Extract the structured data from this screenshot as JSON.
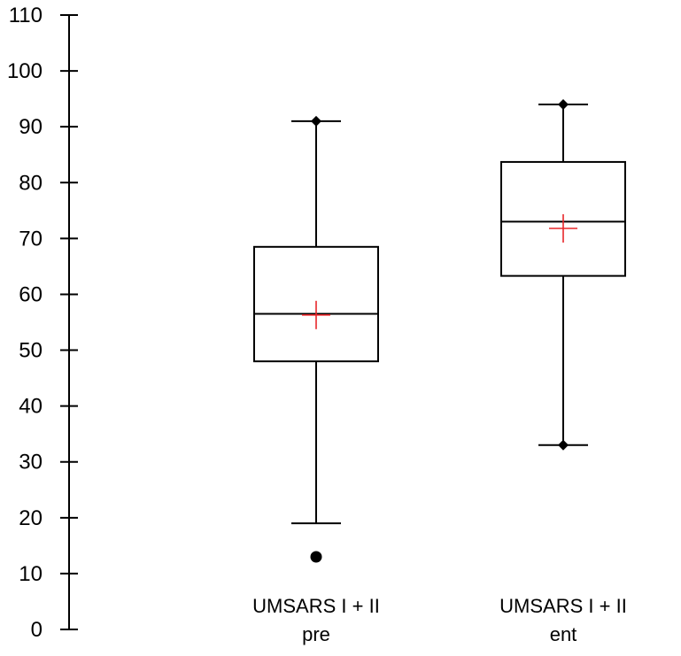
{
  "chart_data": {
    "type": "box",
    "title": "",
    "xlabel": "",
    "ylabel": "",
    "ylim": [
      0,
      110
    ],
    "yticks": [
      0,
      10,
      20,
      30,
      40,
      50,
      60,
      70,
      80,
      90,
      100,
      110
    ],
    "ytick_labels": [
      "0",
      "10",
      "20",
      "30",
      "40",
      "50",
      "60",
      "70",
      "80",
      "90",
      "100",
      "110"
    ],
    "grid": false,
    "legend": "none",
    "colors": {
      "box": "#000000",
      "mean_marker": "#e8262a",
      "outlier": "#000000"
    },
    "categories": [
      {
        "label_line1": "UMSARS I + II",
        "label_line2": "pre"
      },
      {
        "label_line1": "UMSARS I + II",
        "label_line2": "ent"
      }
    ],
    "boxes": [
      {
        "whisker_low": 19,
        "q1": 48,
        "median": 56.5,
        "q3": 68.5,
        "whisker_high": 91,
        "mean": 56.3,
        "outliers": [
          13
        ],
        "whisker_marker_low": false,
        "whisker_marker_high": true
      },
      {
        "whisker_low": 33,
        "q1": 63.3,
        "median": 73,
        "q3": 83.7,
        "whisker_high": 94,
        "mean": 71.8,
        "outliers": [],
        "whisker_marker_low": true,
        "whisker_marker_high": true
      }
    ]
  }
}
